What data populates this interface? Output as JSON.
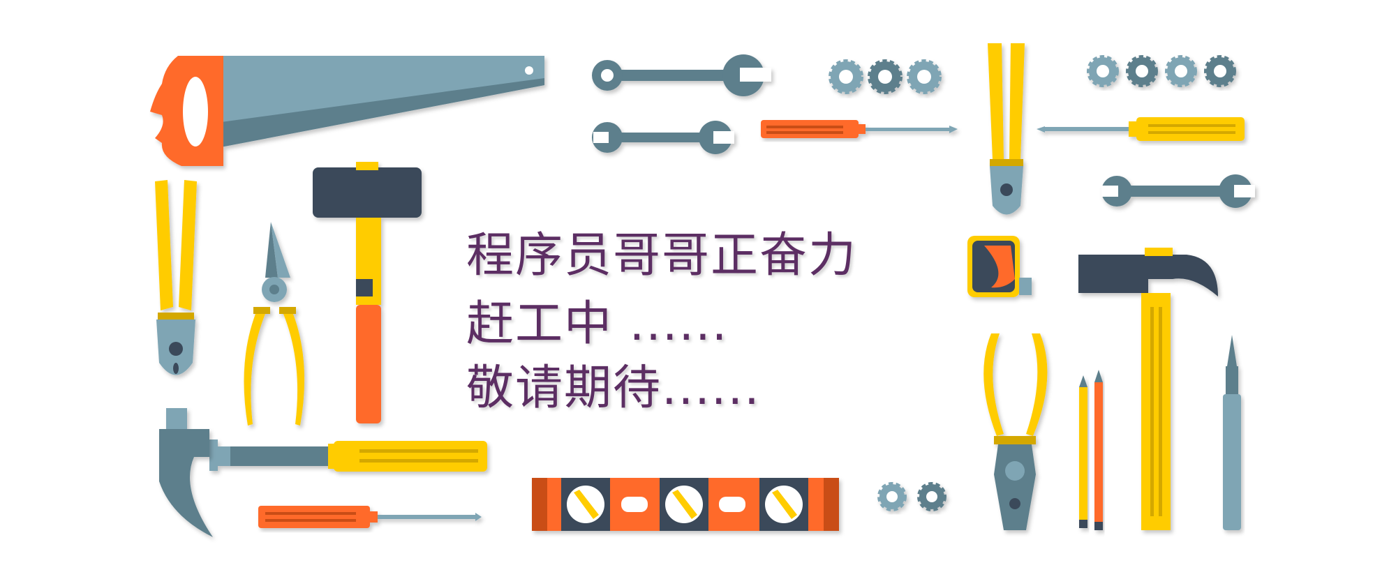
{
  "message": {
    "line1": "程序员哥哥正奋力",
    "line2": "赶工中 ......",
    "line3": "敬请期待......"
  },
  "colors": {
    "text": "#5c2e63",
    "orange": "#ff6a2c",
    "yellow": "#ffcc00",
    "steel": "#7fa5b4",
    "dark_steel": "#5d7f8c",
    "navy": "#3a4a5a"
  },
  "icons": [
    "saw-icon",
    "wrench-icon",
    "gear-icon",
    "screwdriver-icon",
    "pliers-icon",
    "sledgehammer-icon",
    "claw-hammer-icon",
    "tape-measure-icon",
    "spirit-level-icon",
    "pencil-icon",
    "chisel-icon"
  ]
}
